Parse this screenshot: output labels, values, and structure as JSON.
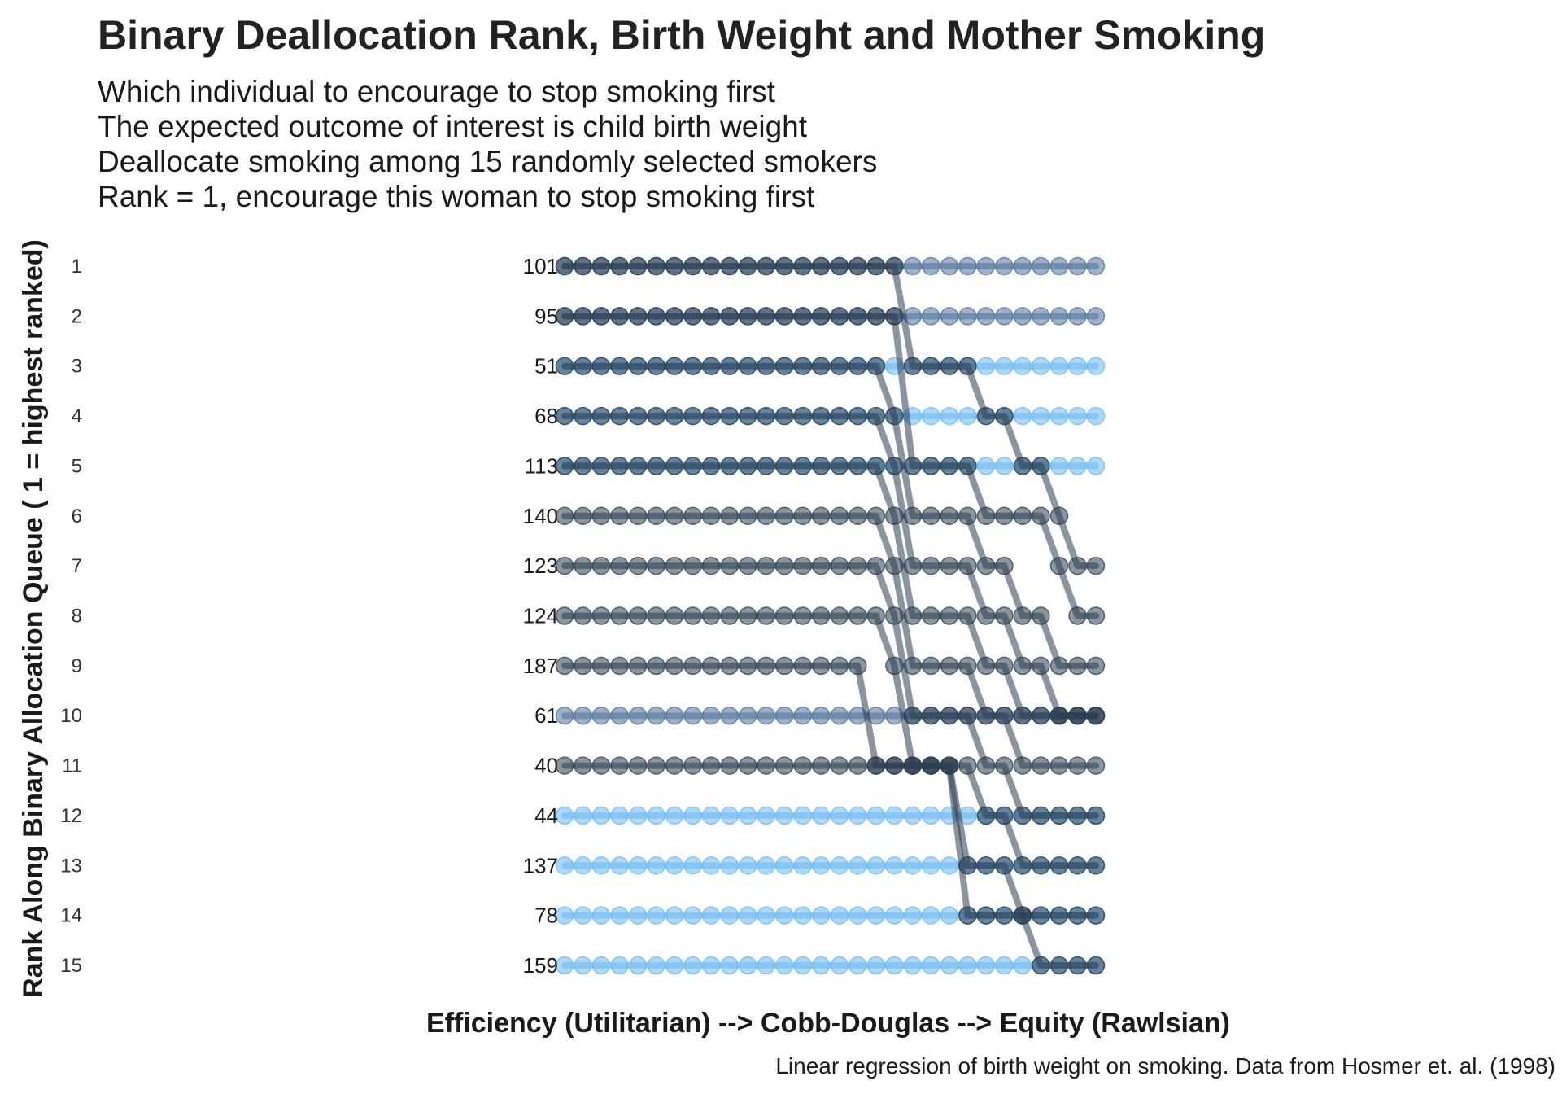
{
  "chart_data": {
    "type": "line",
    "title": "Binary Deallocation Rank, Birth Weight and Mother Smoking",
    "subtitle_lines": [
      "Which individual to encourage to stop smoking first",
      "The expected outcome of interest is child birth weight",
      "Deallocate smoking among 15 randomly selected smokers",
      "Rank = 1, encourage this woman to stop smoking first"
    ],
    "xlabel": "Efficiency (Utilitarian) --> Cobb-Douglas --> Equity (Rawlsian)",
    "ylabel": "Rank Along Binary Allocation Queue ( 1 = highest ranked)",
    "caption": "Linear regression of birth weight on smoking. Data from Hosmer et. al. (1998)",
    "y_ticks": [
      "1",
      "2",
      "3",
      "4",
      "5",
      "6",
      "7",
      "8",
      "9",
      "10",
      "11",
      "12",
      "13",
      "14",
      "15"
    ],
    "x_steps": 30,
    "colors": {
      "dark": "#2c3e50",
      "mid": "#4f7199",
      "light": "#6ab8f2"
    },
    "series": [
      {
        "id": "101",
        "shade": "dark",
        "ranks": [
          1,
          1,
          1,
          1,
          1,
          1,
          1,
          1,
          1,
          1,
          1,
          1,
          1,
          1,
          1,
          1,
          1,
          1,
          1,
          3,
          3,
          3,
          3,
          4,
          4,
          5,
          5,
          6,
          7,
          7
        ]
      },
      {
        "id": "95",
        "shade": "dark",
        "ranks": [
          2,
          2,
          2,
          2,
          2,
          2,
          2,
          2,
          2,
          2,
          2,
          2,
          2,
          2,
          2,
          2,
          2,
          2,
          2,
          5,
          5,
          5,
          5,
          6,
          6,
          6,
          6,
          7,
          8,
          8
        ]
      },
      {
        "id": "51",
        "shade": "dark",
        "ranks": [
          3,
          3,
          3,
          3,
          3,
          3,
          3,
          3,
          3,
          3,
          3,
          3,
          3,
          3,
          3,
          3,
          3,
          3,
          4,
          6,
          6,
          6,
          6,
          7,
          7,
          8,
          8,
          9,
          9,
          9
        ]
      },
      {
        "id": "68",
        "shade": "dark",
        "ranks": [
          4,
          4,
          4,
          4,
          4,
          4,
          4,
          4,
          4,
          4,
          4,
          4,
          4,
          4,
          4,
          4,
          4,
          4,
          5,
          7,
          7,
          7,
          7,
          8,
          8,
          9,
          9,
          10,
          10,
          10
        ]
      },
      {
        "id": "113",
        "shade": "dark",
        "ranks": [
          5,
          5,
          5,
          5,
          5,
          5,
          5,
          5,
          5,
          5,
          5,
          5,
          5,
          5,
          5,
          5,
          5,
          5,
          6,
          8,
          8,
          8,
          8,
          9,
          9,
          10,
          10,
          10,
          10,
          10
        ]
      },
      {
        "id": "140",
        "shade": "dark",
        "ranks": [
          6,
          6,
          6,
          6,
          6,
          6,
          6,
          6,
          6,
          6,
          6,
          6,
          6,
          6,
          6,
          6,
          6,
          6,
          7,
          9,
          9,
          9,
          9,
          10,
          10,
          11,
          11,
          11,
          11,
          11
        ]
      },
      {
        "id": "123",
        "shade": "dark",
        "ranks": [
          7,
          7,
          7,
          7,
          7,
          7,
          7,
          7,
          7,
          7,
          7,
          7,
          7,
          7,
          7,
          7,
          7,
          7,
          8,
          10,
          10,
          10,
          10,
          11,
          11,
          12,
          12,
          12,
          12,
          12
        ]
      },
      {
        "id": "124",
        "shade": "dark",
        "ranks": [
          8,
          8,
          8,
          8,
          8,
          8,
          8,
          8,
          8,
          8,
          8,
          8,
          8,
          8,
          8,
          8,
          8,
          8,
          9,
          11,
          11,
          11,
          11,
          12,
          12,
          13,
          13,
          13,
          13,
          13
        ]
      },
      {
        "id": "187",
        "shade": "dark",
        "ranks": [
          9,
          9,
          9,
          9,
          9,
          9,
          9,
          9,
          9,
          9,
          9,
          9,
          9,
          9,
          9,
          9,
          9,
          11,
          11,
          11,
          11,
          11,
          13,
          13,
          13,
          14,
          14,
          14,
          14,
          14
        ]
      },
      {
        "id": "61",
        "shade": "mid",
        "ranks": [
          10,
          10,
          10,
          10,
          10,
          10,
          10,
          10,
          10,
          10,
          10,
          10,
          10,
          10,
          10,
          10,
          10,
          10,
          10,
          10,
          10,
          10,
          10,
          10,
          10,
          10,
          10,
          10,
          10,
          10
        ]
      },
      {
        "id": "40",
        "shade": "dark",
        "ranks": [
          11,
          11,
          11,
          11,
          11,
          11,
          11,
          11,
          11,
          11,
          11,
          11,
          11,
          11,
          11,
          11,
          11,
          11,
          11,
          11,
          11,
          11,
          14,
          14,
          14,
          14,
          15,
          15,
          15,
          15
        ]
      },
      {
        "id": "44",
        "shade": "light",
        "ranks": [
          12,
          12,
          12,
          12,
          12,
          12,
          12,
          12,
          12,
          12,
          12,
          12,
          12,
          12,
          12,
          12,
          12,
          12,
          12,
          12,
          12,
          12,
          12,
          12,
          12,
          12,
          12,
          12,
          12,
          12
        ]
      },
      {
        "id": "137",
        "shade": "light",
        "ranks": [
          13,
          13,
          13,
          13,
          13,
          13,
          13,
          13,
          13,
          13,
          13,
          13,
          13,
          13,
          13,
          13,
          13,
          13,
          13,
          13,
          13,
          13,
          13,
          13,
          13,
          13,
          13,
          13,
          13,
          13
        ]
      },
      {
        "id": "78",
        "shade": "light",
        "ranks": [
          14,
          14,
          14,
          14,
          14,
          14,
          14,
          14,
          14,
          14,
          14,
          14,
          14,
          14,
          14,
          14,
          14,
          14,
          14,
          14,
          14,
          14,
          14,
          14,
          14,
          14,
          14,
          14,
          14,
          14
        ]
      },
      {
        "id": "159",
        "shade": "light",
        "ranks": [
          15,
          15,
          15,
          15,
          15,
          15,
          15,
          15,
          15,
          15,
          15,
          15,
          15,
          15,
          15,
          15,
          15,
          15,
          15,
          15,
          15,
          15,
          15,
          15,
          15,
          15,
          15,
          15,
          15,
          15
        ]
      }
    ],
    "extra_ranked_marks": [
      {
        "shade": "mid",
        "ranks": [
          1,
          1,
          1,
          1,
          1,
          1,
          1,
          1,
          1,
          1,
          1,
          1,
          1,
          1,
          1,
          1,
          1,
          1,
          1,
          1,
          1,
          1,
          1,
          1,
          1,
          1,
          1,
          1,
          1,
          1
        ]
      },
      {
        "shade": "mid",
        "ranks": [
          2,
          2,
          2,
          2,
          2,
          2,
          2,
          2,
          2,
          2,
          2,
          2,
          2,
          2,
          2,
          2,
          2,
          2,
          2,
          2,
          2,
          2,
          2,
          2,
          2,
          2,
          2,
          2,
          2,
          2
        ]
      },
      {
        "shade": "light",
        "ranks": [
          3,
          3,
          3,
          3,
          3,
          3,
          3,
          3,
          3,
          3,
          3,
          3,
          3,
          3,
          3,
          3,
          3,
          3,
          3,
          3,
          3,
          3,
          3,
          3,
          3,
          3,
          3,
          3,
          3,
          3
        ]
      },
      {
        "shade": "light",
        "ranks": [
          4,
          4,
          4,
          4,
          4,
          4,
          4,
          4,
          4,
          4,
          4,
          4,
          4,
          4,
          4,
          4,
          4,
          4,
          4,
          4,
          4,
          4,
          4,
          4,
          4,
          4,
          4,
          4,
          4,
          4
        ]
      },
      {
        "shade": "light",
        "ranks": [
          5,
          5,
          5,
          5,
          5,
          5,
          5,
          5,
          5,
          5,
          5,
          5,
          5,
          5,
          5,
          5,
          5,
          5,
          5,
          5,
          5,
          5,
          5,
          5,
          5,
          5,
          5,
          5,
          5,
          5
        ]
      }
    ]
  }
}
